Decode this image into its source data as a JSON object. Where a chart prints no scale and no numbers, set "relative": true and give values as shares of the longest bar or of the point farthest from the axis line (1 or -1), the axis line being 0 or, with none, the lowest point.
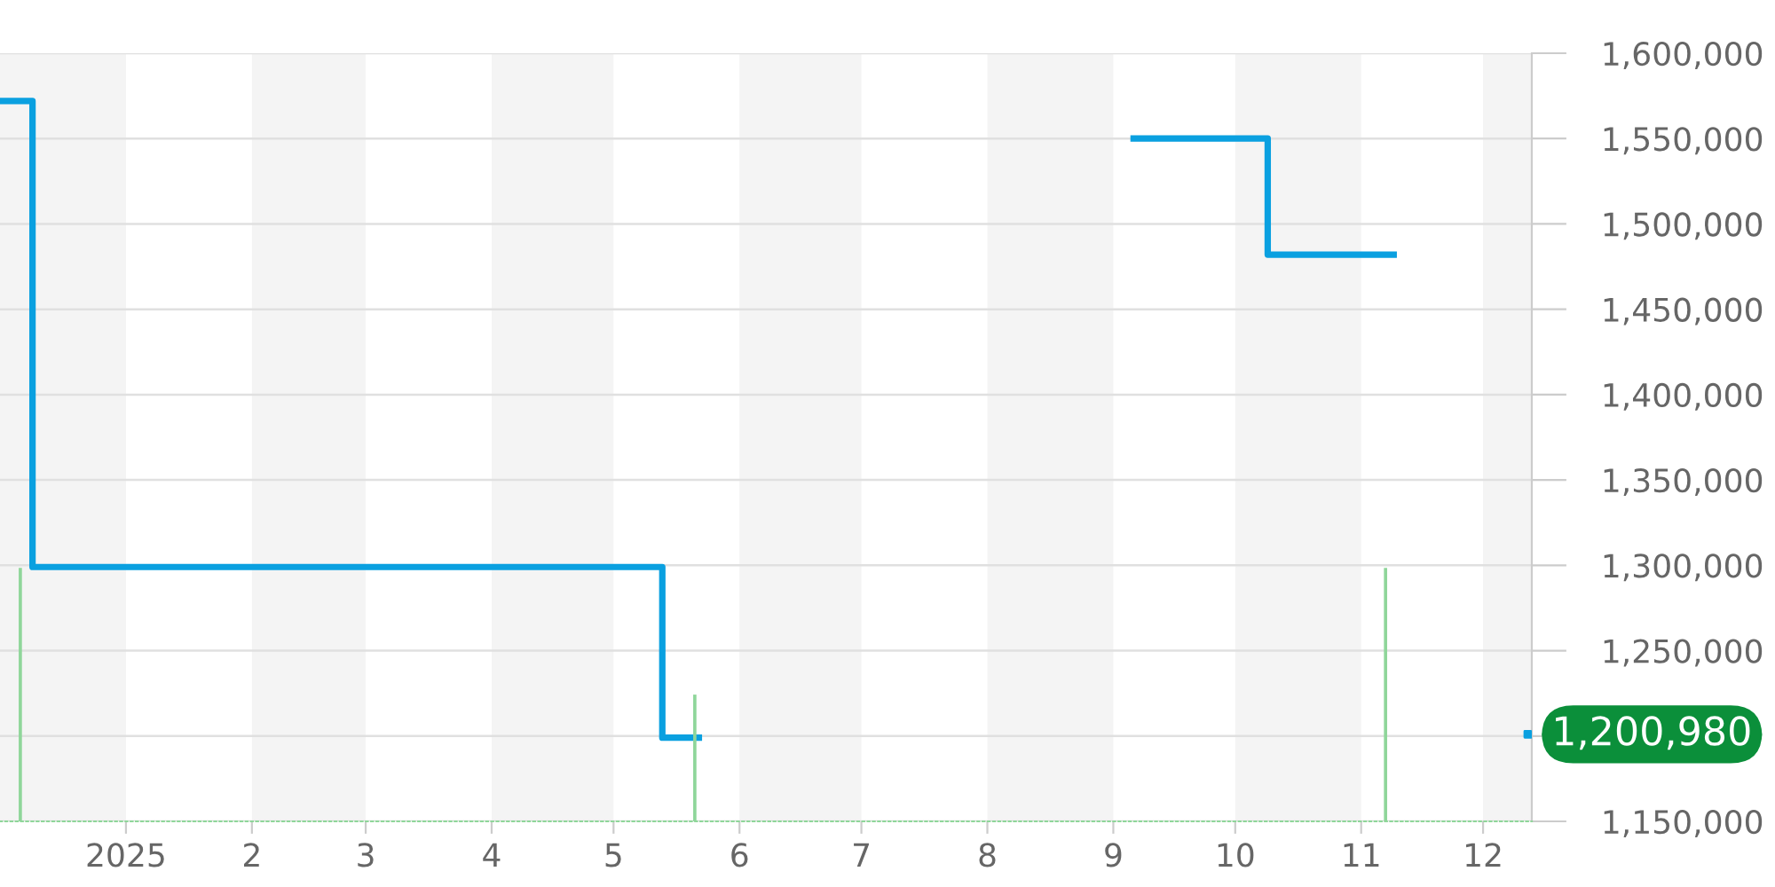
{
  "chart_data": [
    {
      "type": "step",
      "xlim": [
        "2024-12-01",
        "2025-12-13"
      ],
      "ylim": [
        1150000,
        1600000
      ],
      "xticks": [
        {
          "value": "2025-01-01",
          "label": "2025"
        },
        {
          "value": "2025-02-01",
          "label": "2"
        },
        {
          "value": "2025-03-01",
          "label": "3"
        },
        {
          "value": "2025-04-01",
          "label": "4"
        },
        {
          "value": "2025-05-01",
          "label": "5"
        },
        {
          "value": "2025-06-01",
          "label": "6"
        },
        {
          "value": "2025-07-01",
          "label": "7"
        },
        {
          "value": "2025-08-01",
          "label": "8"
        },
        {
          "value": "2025-09-01",
          "label": "9"
        },
        {
          "value": "2025-10-01",
          "label": "10"
        },
        {
          "value": "2025-11-01",
          "label": "11"
        },
        {
          "value": "2025-12-01",
          "label": "12"
        }
      ],
      "yticks": [
        {
          "value": 1150000,
          "label": "1,150,000"
        },
        {
          "value": 1200000,
          "label": null
        },
        {
          "value": 1250000,
          "label": "1,250,000"
        },
        {
          "value": 1300000,
          "label": "1,300,000"
        },
        {
          "value": 1350000,
          "label": "1,350,000"
        },
        {
          "value": 1400000,
          "label": "1,400,000"
        },
        {
          "value": 1450000,
          "label": "1,450,000"
        },
        {
          "value": 1500000,
          "label": "1,500,000"
        },
        {
          "value": 1550000,
          "label": "1,550,000"
        },
        {
          "value": 1600000,
          "label": "1,600,000"
        }
      ],
      "grid": "y",
      "series": [
        {
          "color": "#0aa0e0",
          "x": [
            "2024-12-01",
            "2024-12-09",
            "2025-05-13",
            "2025-05-22"
          ],
          "values": [
            1572000,
            1299000,
            1199000,
            1199000
          ]
        },
        {
          "color": "#0aa0e0",
          "x": [
            "2025-09-06",
            "2025-10-09",
            "2025-11-09"
          ],
          "values": [
            1550000,
            1482000,
            1482000
          ]
        },
        {
          "type": "scatter",
          "marker": "square",
          "color": "#0aa0e0",
          "x": [
            "2025-12-12"
          ],
          "values": [
            1200980
          ]
        }
      ],
      "bands": [
        {
          "axis": "x",
          "from": "2024-12-01",
          "to": "2025-01-01",
          "color": "#f4f4f4"
        },
        {
          "axis": "x",
          "from": "2025-02-01",
          "to": "2025-03-01",
          "color": "#f4f4f4"
        },
        {
          "axis": "x",
          "from": "2025-04-01",
          "to": "2025-05-01",
          "color": "#f4f4f4"
        },
        {
          "axis": "x",
          "from": "2025-06-01",
          "to": "2025-07-01",
          "color": "#f4f4f4"
        },
        {
          "axis": "x",
          "from": "2025-08-01",
          "to": "2025-09-01",
          "color": "#f4f4f4"
        },
        {
          "axis": "x",
          "from": "2025-10-01",
          "to": "2025-11-01",
          "color": "#f4f4f4"
        },
        {
          "axis": "x",
          "from": "2025-12-01",
          "to": "2025-12-13",
          "color": "#f4f4f4"
        }
      ],
      "annotations": [
        {
          "text": "1,200,980",
          "x": "2025-12-13",
          "y": 1200980
        }
      ]
    },
    {
      "type": "bar",
      "relative": true,
      "xlim": [
        "2024-12-01",
        "2025-12-13"
      ],
      "x": [
        "2024-12-06",
        "2025-05-21",
        "2025-11-07"
      ],
      "values": [
        1,
        0.5,
        1
      ],
      "color": "#8fd69a"
    }
  ]
}
